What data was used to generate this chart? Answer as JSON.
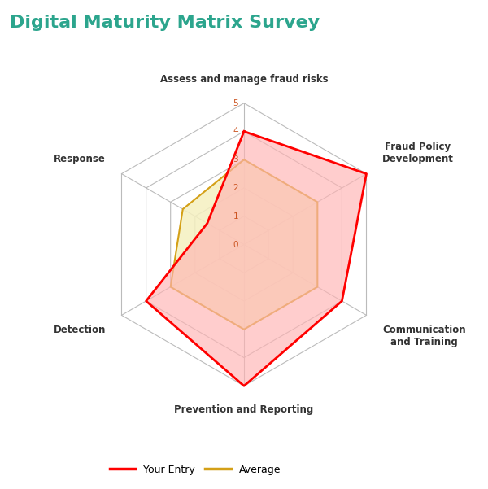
{
  "title": "Digital Maturity Matrix Survey",
  "title_color": "#2ca58d",
  "title_fontsize": 16,
  "categories": [
    "Assess and manage fraud risks",
    "Fraud Policy\nDevelopment",
    "Communication\nand Training",
    "Prevention and Reporting",
    "Detection",
    "Response"
  ],
  "your_entry": [
    4,
    5,
    4,
    5,
    4,
    1.5
  ],
  "average": [
    3,
    3,
    3,
    3,
    3,
    2.5
  ],
  "your_entry_color": "#ff0000",
  "your_entry_fill": "#ffb3b3",
  "average_color": "#d4a017",
  "average_fill": "#f5f0c0",
  "grid_color": "#bbbbbb",
  "max_val": 5,
  "background_color": "#ffffff",
  "label_fontsize": 8.5,
  "legend_fontsize": 9,
  "tick_color": "#cc5522"
}
